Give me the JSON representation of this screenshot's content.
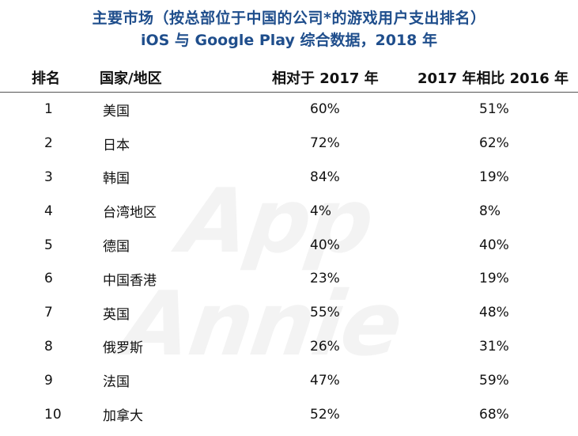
{
  "title_line1": "主要市场（按总部位于中国的公司*的游戏用户支出排名）",
  "title_line2": "iOS 与 Google Play 综合数据，2018 年",
  "watermark": "App Annie",
  "chart_data": {
    "type": "table",
    "title": "主要市场（按总部位于中国的公司*的游戏用户支出排名）",
    "subtitle": "iOS 与 Google Play 综合数据，2018 年",
    "columns": [
      "排名",
      "国家/地区",
      "相对于 2017 年",
      "2017 年相比 2016 年"
    ],
    "rows": [
      {
        "rank": "1",
        "country": "美国",
        "v2017": "60%",
        "v2016": "51%"
      },
      {
        "rank": "2",
        "country": "日本",
        "v2017": "72%",
        "v2016": "62%"
      },
      {
        "rank": "3",
        "country": "韩国",
        "v2017": "84%",
        "v2016": "19%"
      },
      {
        "rank": "4",
        "country": "台湾地区",
        "v2017": "4%",
        "v2016": "8%"
      },
      {
        "rank": "5",
        "country": "德国",
        "v2017": "40%",
        "v2016": "40%"
      },
      {
        "rank": "6",
        "country": "中国香港",
        "v2017": "23%",
        "v2016": "19%"
      },
      {
        "rank": "7",
        "country": "英国",
        "v2017": "55%",
        "v2016": "48%"
      },
      {
        "rank": "8",
        "country": "俄罗斯",
        "v2017": "26%",
        "v2016": "31%"
      },
      {
        "rank": "9",
        "country": "法国",
        "v2017": "47%",
        "v2016": "59%"
      },
      {
        "rank": "10",
        "country": "加拿大",
        "v2017": "52%",
        "v2016": "68%"
      }
    ]
  }
}
